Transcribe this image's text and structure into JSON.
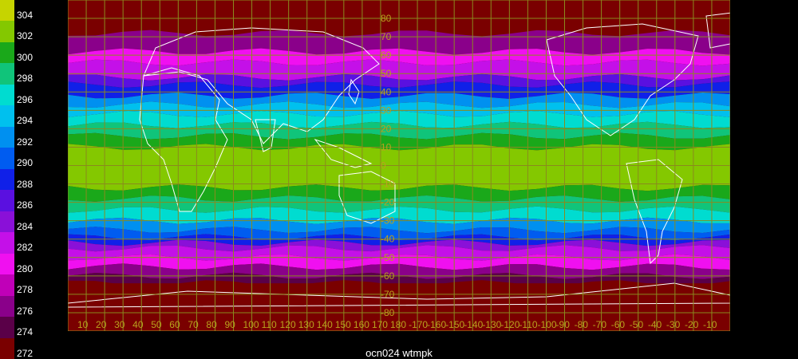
{
  "legend": {
    "levels": [
      {
        "value": "304",
        "color": "#c6d400"
      },
      {
        "value": "302",
        "color": "#84c800"
      },
      {
        "value": "300",
        "color": "#1aa81a"
      },
      {
        "value": "298",
        "color": "#10c47a"
      },
      {
        "value": "296",
        "color": "#00dcd0"
      },
      {
        "value": "294",
        "color": "#00c0ee"
      },
      {
        "value": "292",
        "color": "#0090f0"
      },
      {
        "value": "290",
        "color": "#005cf0"
      },
      {
        "value": "288",
        "color": "#1020e8"
      },
      {
        "value": "286",
        "color": "#5a10e0"
      },
      {
        "value": "284",
        "color": "#8a10d8"
      },
      {
        "value": "282",
        "color": "#c410e8"
      },
      {
        "value": "280",
        "color": "#f010f0"
      },
      {
        "value": "278",
        "color": "#c000b8"
      },
      {
        "value": "276",
        "color": "#8a008a"
      },
      {
        "value": "274",
        "color": "#5a0048"
      },
      {
        "value": "272",
        "color": "#7a0000"
      }
    ]
  },
  "map": {
    "lat_labels": [
      "80",
      "70",
      "60",
      "50",
      "40",
      "30",
      "20",
      "10",
      "0",
      "-10",
      "-20",
      "-30",
      "-40",
      "-50",
      "-60",
      "-70",
      "-80"
    ],
    "lon_labels": [
      "10",
      "20",
      "30",
      "40",
      "50",
      "60",
      "70",
      "80",
      "90",
      "100",
      "110",
      "120",
      "130",
      "140",
      "150",
      "160",
      "170",
      "180",
      "-170",
      "-160",
      "-150",
      "-140",
      "-130",
      "-120",
      "-110",
      "-100",
      "-90",
      "-80",
      "-70",
      "-60",
      "-50",
      "-40",
      "-30",
      "-20",
      "-10"
    ],
    "grid_color": "#8a8a1e",
    "label_color": "#b9a21e",
    "coast_color": "#ffffff"
  },
  "caption": "ocn024 wtmpk"
}
